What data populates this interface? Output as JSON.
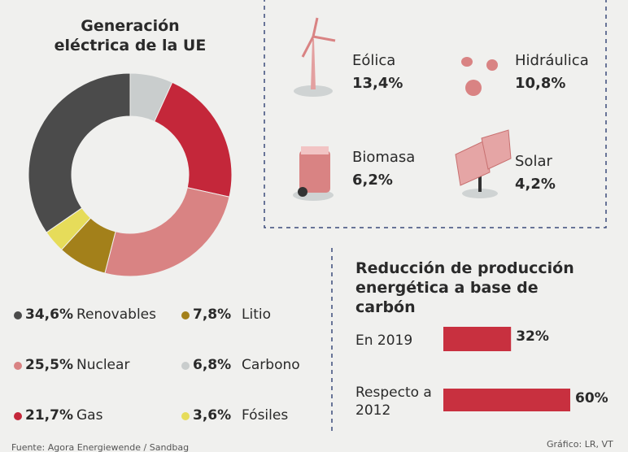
{
  "chart_data": [
    {
      "type": "pie",
      "donut": true,
      "title": "Generación eléctrica de la UE",
      "categories": [
        "Carbono",
        "Gas",
        "Nuclear",
        "Litio",
        "Fósiles",
        "Renovables"
      ],
      "values": [
        6.8,
        21.7,
        25.5,
        7.8,
        3.6,
        34.6
      ],
      "value_labels": [
        "6,8%",
        "21,7%",
        "25,5%",
        "7,8%",
        "3,6%",
        "34,6%"
      ],
      "colors": [
        "#c9cdcd",
        "#c4273a",
        "#d98383",
        "#a3801a",
        "#e6dc5a",
        "#4b4b4b"
      ]
    },
    {
      "type": "hbar",
      "title": "Reducción de producción energética a base de carbón",
      "categories": [
        "En 2019",
        "Respecto a 2012"
      ],
      "values": [
        32,
        60
      ],
      "value_labels": [
        "32%",
        "60%"
      ],
      "color": "#c8303f"
    }
  ],
  "renewables": [
    {
      "name": "Eólica",
      "value": "13,4%"
    },
    {
      "name": "Hidráulica",
      "value": "10,8%"
    },
    {
      "name": "Biomasa",
      "value": "6,2%"
    },
    {
      "name": "Solar",
      "value": "4,2%"
    }
  ],
  "source": "Fuente: Agora Energiewende / Sandbag",
  "credit": "Gráfico: LR, VT"
}
